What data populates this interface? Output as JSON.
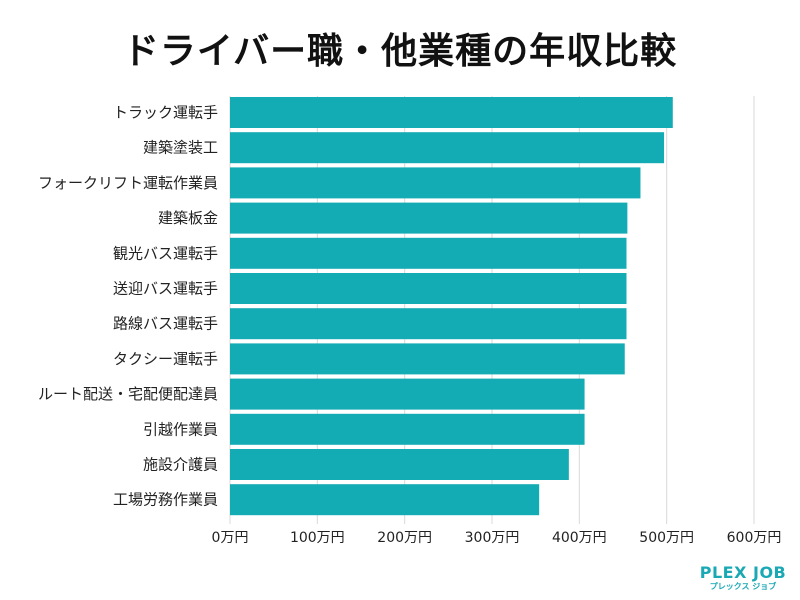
{
  "chart_data": {
    "type": "bar",
    "orientation": "horizontal",
    "title": "ドライバー職・他業種の年収比較",
    "categories": [
      "トラック運転手",
      "建築塗装工",
      "フォークリフト運転作業員",
      "建築板金",
      "観光バス運転手",
      "送迎バス運転手",
      "路線バス運転手",
      "タクシー運転手",
      "ルート配送・宅配便配達員",
      "引越作業員",
      "施設介護員",
      "工場労務作業員"
    ],
    "values": [
      507,
      497,
      470,
      455,
      454,
      454,
      454,
      452,
      406,
      406,
      388,
      354
    ],
    "xlim": [
      0,
      600
    ],
    "ticks": [
      0,
      100,
      200,
      300,
      400,
      500,
      600
    ],
    "tick_labels": [
      "0万円",
      "100万円",
      "200万円",
      "300万円",
      "400万円",
      "500万円",
      "600万円"
    ],
    "bar_color": "#14acb4",
    "grid": true
  },
  "logo": {
    "main": "PLEX JOB",
    "sub": "プレックス ジョブ",
    "color": "#1aa9b4"
  }
}
